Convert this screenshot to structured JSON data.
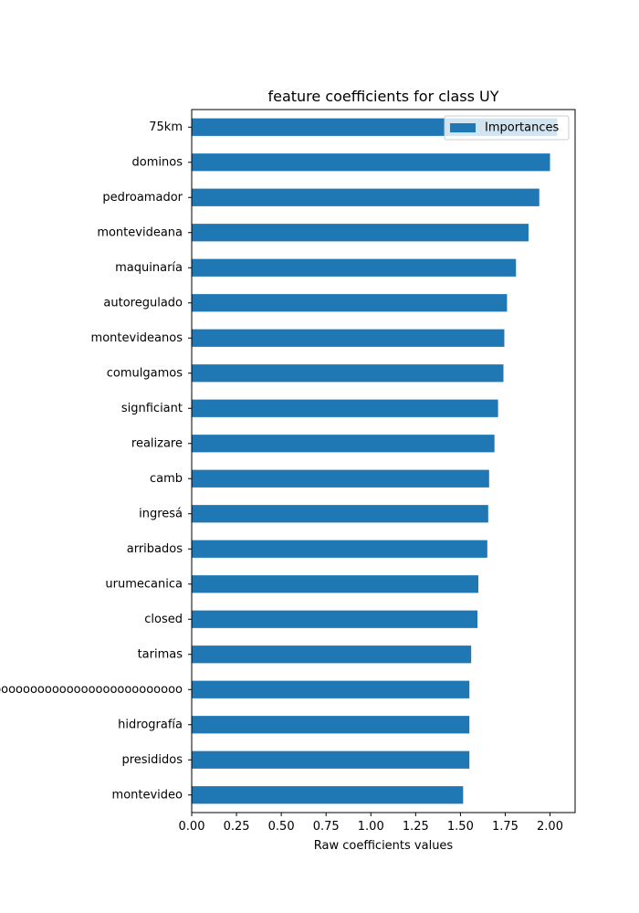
{
  "chart_data": {
    "type": "bar",
    "orientation": "horizontal",
    "title": "feature coefficients for class UY",
    "xlabel": "Raw coefficients values",
    "ylabel": "",
    "xlim": [
      0,
      2.14
    ],
    "xticks": [
      "0.00",
      "0.25",
      "0.50",
      "0.75",
      "1.00",
      "1.25",
      "1.50",
      "1.75",
      "2.00"
    ],
    "xtick_values": [
      0,
      0.25,
      0.5,
      0.75,
      1.0,
      1.25,
      1.5,
      1.75,
      2.0
    ],
    "categories": [
      "75km",
      "dominos",
      "pedroamador",
      "montevideana",
      "maquinaría",
      "autoregulado",
      "montevideanos",
      "comulgamos",
      "signficiant",
      "realizare",
      "camb",
      "ingresá",
      "arribados",
      "urumecanica",
      "closed",
      "tarimas",
      "ooooooooooooooooooooooooooooooooo",
      "hidrografía",
      "presididos",
      "montevideo"
    ],
    "series": [
      {
        "name": "Importances",
        "color": "#1f77b4",
        "values": [
          2.04,
          2.0,
          1.94,
          1.88,
          1.81,
          1.76,
          1.745,
          1.74,
          1.71,
          1.69,
          1.66,
          1.655,
          1.65,
          1.6,
          1.595,
          1.56,
          1.55,
          1.55,
          1.55,
          1.515
        ]
      }
    ],
    "legend": {
      "position": "top-right",
      "entries": [
        "Importances"
      ]
    },
    "grid": false
  }
}
